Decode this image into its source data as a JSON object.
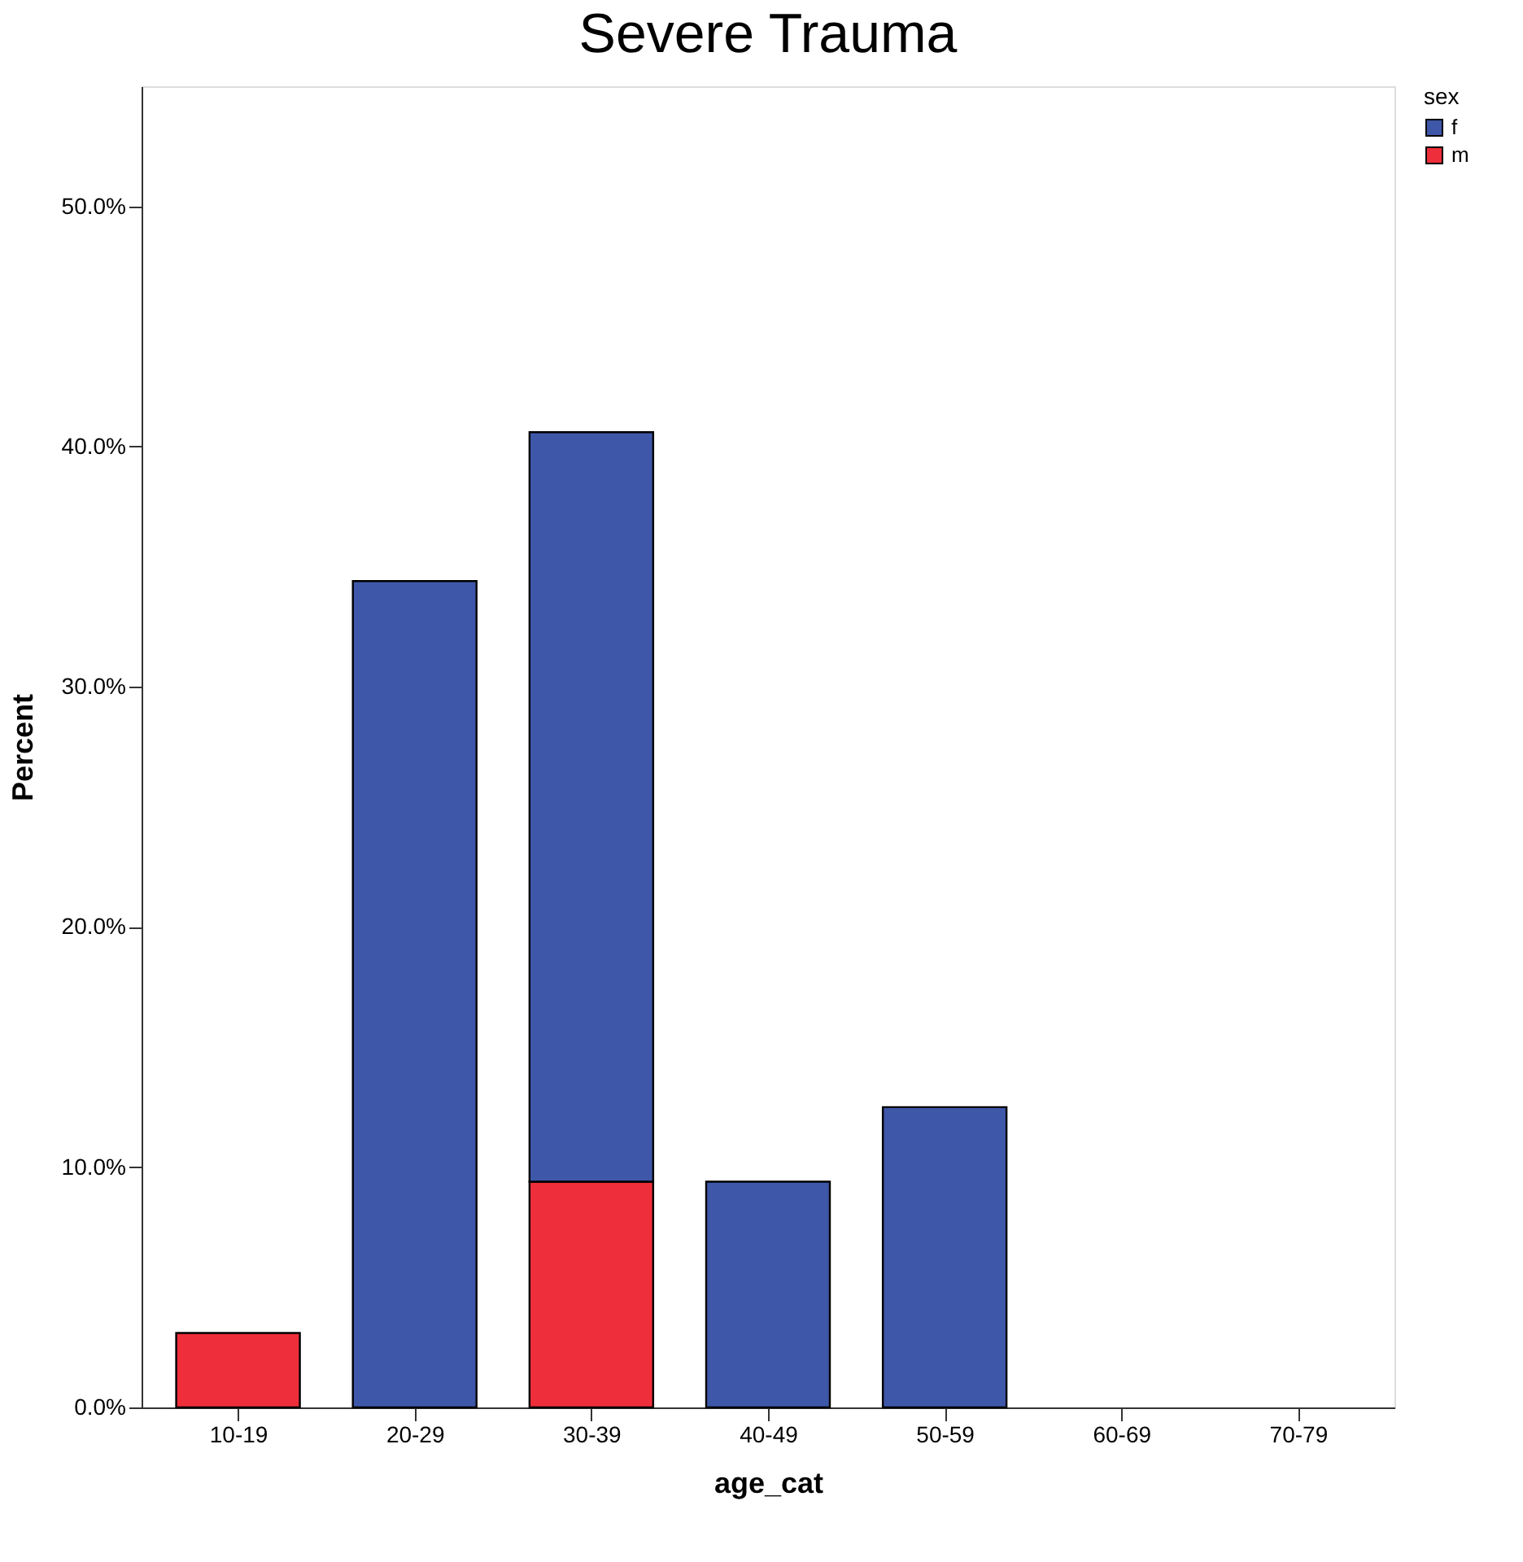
{
  "chart_data": {
    "type": "bar",
    "title": "Severe Trauma",
    "xlabel": "age_cat",
    "ylabel": "Percent",
    "legend_title": "sex",
    "categories": [
      "10-19",
      "20-29",
      "30-39",
      "40-49",
      "50-59",
      "60-69",
      "70-79"
    ],
    "stacked": true,
    "series": [
      {
        "name": "m",
        "color": "#ee2e3a",
        "values": [
          3.1,
          null,
          9.4,
          null,
          null,
          null,
          null
        ]
      },
      {
        "name": "f",
        "color": "#3f57a8",
        "values": [
          null,
          34.4,
          31.2,
          9.4,
          12.5,
          null,
          null
        ]
      }
    ],
    "ylim": [
      0,
      55
    ],
    "yticks": [
      {
        "value": 0,
        "label": "0.0%"
      },
      {
        "value": 10,
        "label": "10.0%"
      },
      {
        "value": 20,
        "label": "20.0%"
      },
      {
        "value": 30,
        "label": "30.0%"
      },
      {
        "value": 40,
        "label": "40.0%"
      },
      {
        "value": 50,
        "label": "50.0%"
      }
    ],
    "grid": false,
    "legend": "top right"
  }
}
